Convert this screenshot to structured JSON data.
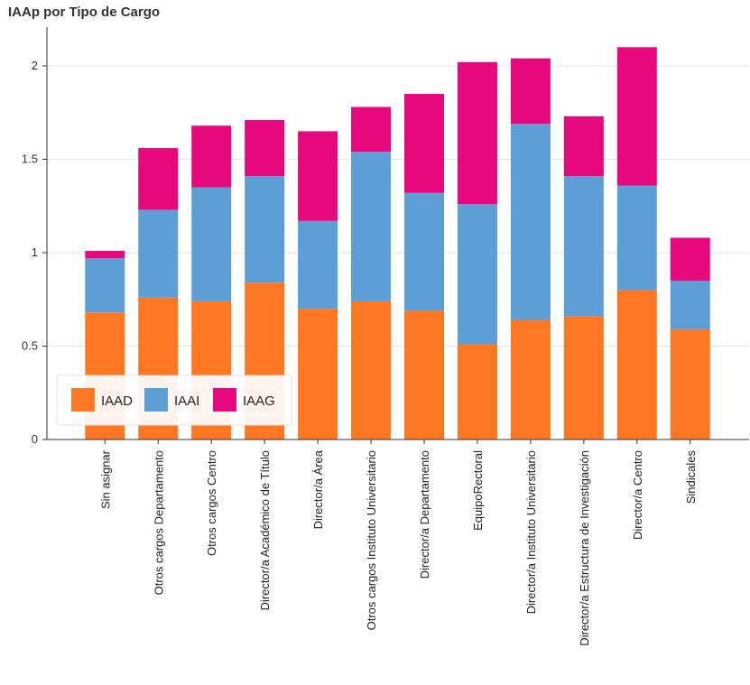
{
  "chart_data": {
    "type": "bar",
    "stacked": true,
    "title": "IAAp por Tipo de Cargo",
    "xlabel": "",
    "ylabel": "",
    "ylim": [
      0,
      2.2
    ],
    "yticks": [
      0,
      0.5,
      1,
      1.5,
      2
    ],
    "ytick_labels": [
      "0",
      "0.5",
      "1",
      "1.5",
      "2"
    ],
    "grid": "horizontal",
    "legend_position": "bottom-left",
    "categories": [
      "Sin asignar",
      "Otros cargos Departamento",
      "Otros cargos Centro",
      "Director/a Académico de Título",
      "Director/a Área",
      "Otros cargos Instituto Universitario",
      "Director/a Departamento",
      "EquipoRectoral",
      "Director/a Instituto Universitario",
      "Director/a Estructura de Investigación",
      "Director/a Centro",
      "Sindicales"
    ],
    "series": [
      {
        "name": "IAAD",
        "color": "#ff7722",
        "values": [
          0.68,
          0.76,
          0.74,
          0.84,
          0.7,
          0.74,
          0.69,
          0.51,
          0.64,
          0.66,
          0.8,
          0.59
        ]
      },
      {
        "name": "IAAI",
        "color": "#5e9ed6",
        "values": [
          0.29,
          0.47,
          0.61,
          0.57,
          0.47,
          0.8,
          0.63,
          0.75,
          1.05,
          0.75,
          0.56,
          0.26
        ]
      },
      {
        "name": "IAAG",
        "color": "#e8087d",
        "values": [
          0.04,
          0.33,
          0.33,
          0.3,
          0.48,
          0.24,
          0.53,
          0.76,
          0.35,
          0.32,
          0.74,
          0.23
        ]
      }
    ]
  }
}
